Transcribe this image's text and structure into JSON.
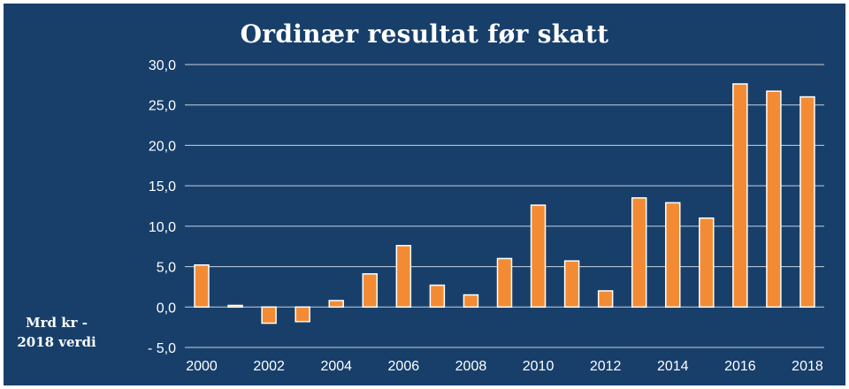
{
  "chart_data": {
    "type": "bar",
    "title": "Ordinær resultat før skatt",
    "ylabel_lines": [
      "Mrd kr -",
      "2018 verdi"
    ],
    "x": [
      2000,
      2001,
      2002,
      2003,
      2004,
      2005,
      2006,
      2007,
      2008,
      2009,
      2010,
      2011,
      2012,
      2013,
      2014,
      2015,
      2016,
      2017,
      2018
    ],
    "x_tick_labels": [
      "2000",
      "2002",
      "2004",
      "2006",
      "2008",
      "2010",
      "2012",
      "2014",
      "2016",
      "2018"
    ],
    "values": [
      5.2,
      0.2,
      -2.0,
      -1.8,
      0.8,
      4.1,
      7.6,
      2.7,
      1.5,
      6.0,
      12.6,
      5.7,
      2.0,
      13.5,
      12.9,
      11.0,
      27.6,
      26.7,
      26.0
    ],
    "ylim": [
      -5,
      30
    ],
    "y_ticks": [
      -5,
      0,
      5,
      10,
      15,
      20,
      25,
      30
    ],
    "y_tick_labels": [
      "- 5,0",
      "0,0",
      "5,0",
      "10,0",
      "15,0",
      "20,0",
      "25,0",
      "30,0"
    ],
    "grid": true,
    "colors": {
      "background": "#173f6a",
      "bar_fill": "#f38b35",
      "bar_edge": "#ffffff",
      "grid": "#c8d2de",
      "text": "#ffffff"
    }
  }
}
